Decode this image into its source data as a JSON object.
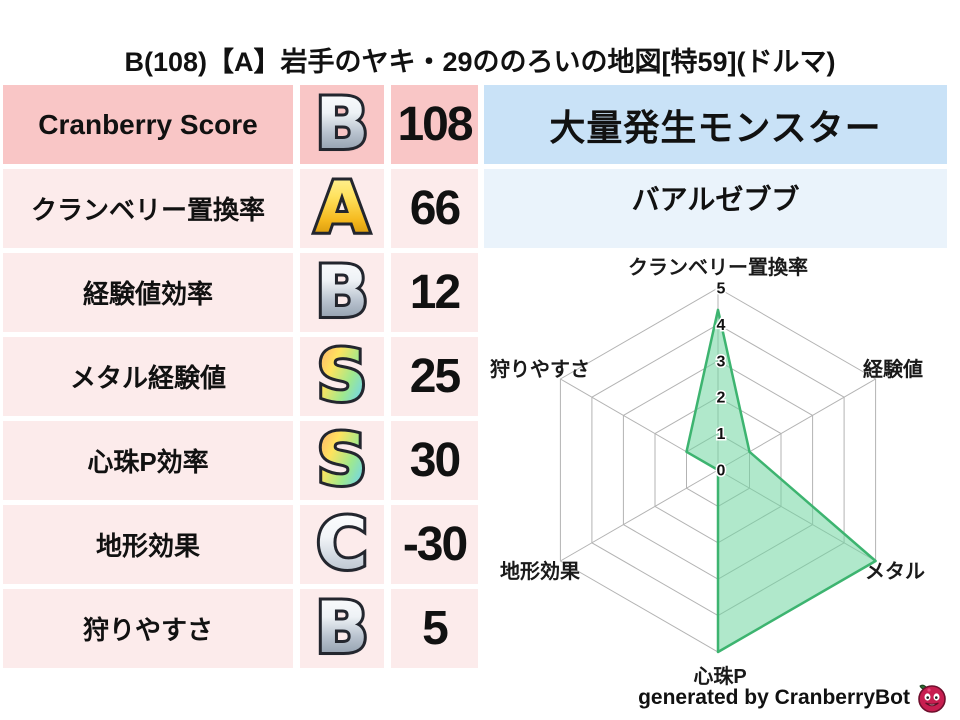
{
  "title": "B(108)【A】岩手のヤキ・29ののろいの地図[特59](ドルマ)",
  "colors": {
    "row_header_pink": "#f9c6c6",
    "row_pink": "#fcebeb",
    "monster_header_blue": "#c9e2f7",
    "monster_name_blue": "#eaf3fb",
    "grade_gold": "#f5b91e",
    "grade_silver": "#b9c3cf",
    "radar_line": "#3db470",
    "radar_fill": "rgba(111,214,160,0.55)",
    "grid": "#b3b3b3"
  },
  "stats_table": {
    "rows": [
      {
        "label": "Cranberry Score",
        "grade": "B",
        "value": "108",
        "highlight": true
      },
      {
        "label": "クランベリー置換率",
        "grade": "A",
        "value": "66"
      },
      {
        "label": "経験値効率",
        "grade": "B",
        "value": "12"
      },
      {
        "label": "メタル経験値",
        "grade": "S",
        "value": "25"
      },
      {
        "label": "心珠P効率",
        "grade": "S",
        "value": "30"
      },
      {
        "label": "地形効果",
        "grade": "C",
        "value": "-30"
      },
      {
        "label": "狩りやすさ",
        "grade": "B",
        "value": "5"
      }
    ]
  },
  "monster_panel": {
    "header": "大量発生モンスター",
    "name": "バアルゼブブ"
  },
  "chart_data": {
    "type": "radar",
    "title": "",
    "categories": [
      "クランベリー置換率",
      "経験値",
      "メタル",
      "心珠P",
      "地形効果",
      "狩りやすさ"
    ],
    "values": [
      4.4,
      1,
      5,
      5,
      0,
      1
    ],
    "ticks": [
      0,
      1,
      2,
      3,
      4,
      5
    ],
    "max": 5,
    "grid": true,
    "legend": "none",
    "line_color": "#3db470",
    "fill_color": "rgba(111,214,160,0.55)"
  },
  "footer": {
    "credit": "generated by CranberryBot",
    "icon": "cranberry-bot-icon"
  }
}
